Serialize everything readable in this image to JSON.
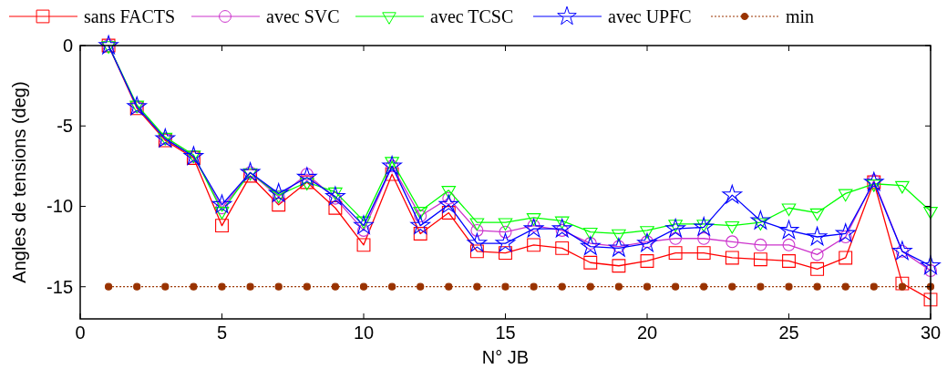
{
  "chart_data": {
    "type": "line",
    "xlabel": "N° JB",
    "ylabel": "Angles de tensions (deg)",
    "x": [
      1,
      2,
      3,
      4,
      5,
      6,
      7,
      8,
      9,
      10,
      11,
      12,
      13,
      14,
      15,
      16,
      17,
      18,
      19,
      20,
      21,
      22,
      23,
      24,
      25,
      26,
      27,
      28,
      29,
      30
    ],
    "xlim": [
      0,
      30
    ],
    "xticks": [
      0,
      5,
      10,
      15,
      20,
      25,
      30
    ],
    "ylim": [
      -17,
      0
    ],
    "yticks": [
      -15,
      -10,
      -5,
      0
    ],
    "grid": false,
    "legend": "top",
    "series": [
      {
        "name": "sans FACTS",
        "color": "#ff0000",
        "marker": "square",
        "line_style": "solid",
        "values": [
          0,
          -3.9,
          -5.9,
          -7.0,
          -11.2,
          -8.1,
          -9.9,
          -8.5,
          -10.1,
          -12.4,
          -8.0,
          -11.7,
          -10.4,
          -12.8,
          -12.9,
          -12.4,
          -12.6,
          -13.5,
          -13.7,
          -13.4,
          -12.9,
          -12.9,
          -13.2,
          -13.3,
          -13.4,
          -13.9,
          -13.2,
          -8.5,
          -14.8,
          -15.8
        ]
      },
      {
        "name": "avec SVC",
        "color": "#cc33cc",
        "marker": "circle",
        "line_style": "solid",
        "values": [
          0,
          -3.8,
          -5.8,
          -6.9,
          -10.1,
          -7.9,
          -9.4,
          -8.0,
          -9.5,
          -11.5,
          -7.5,
          -10.6,
          -9.5,
          -11.5,
          -11.6,
          -11.2,
          -11.5,
          -12.3,
          -12.5,
          -12.2,
          -12.0,
          -12.0,
          -12.2,
          -12.4,
          -12.4,
          -13.0,
          -11.9,
          -8.4,
          -12.8,
          -14.0
        ]
      },
      {
        "name": "avec TCSC",
        "color": "#00ff00",
        "marker": "triangle",
        "line_style": "solid",
        "values": [
          0,
          -3.7,
          -5.7,
          -6.8,
          -10.3,
          -7.9,
          -9.3,
          -8.5,
          -9.1,
          -10.9,
          -7.2,
          -10.3,
          -9.0,
          -11.0,
          -11.0,
          -10.7,
          -10.9,
          -11.6,
          -11.7,
          -11.5,
          -11.1,
          -11.1,
          -11.2,
          -11.0,
          -10.1,
          -10.4,
          -9.2,
          -8.6,
          -8.7,
          -10.3
        ]
      },
      {
        "name": "avec UPFC",
        "color": "#0000ff",
        "marker": "star",
        "line_style": "solid",
        "values": [
          0,
          -3.8,
          -5.8,
          -6.9,
          -9.9,
          -7.9,
          -9.2,
          -8.2,
          -9.4,
          -11.2,
          -7.5,
          -11.2,
          -9.9,
          -12.3,
          -12.3,
          -11.4,
          -11.4,
          -12.5,
          -12.6,
          -12.3,
          -11.4,
          -11.3,
          -9.3,
          -10.9,
          -11.5,
          -11.9,
          -11.7,
          -8.5,
          -12.8,
          -13.7
        ]
      },
      {
        "name": "min",
        "color": "#993300",
        "marker": "circle",
        "line_style": "dotted",
        "values": [
          -15,
          -15,
          -15,
          -15,
          -15,
          -15,
          -15,
          -15,
          -15,
          -15,
          -15,
          -15,
          -15,
          -15,
          -15,
          -15,
          -15,
          -15,
          -15,
          -15,
          -15,
          -15,
          -15,
          -15,
          -15,
          -15,
          -15,
          -15,
          -15,
          -15
        ]
      }
    ]
  }
}
